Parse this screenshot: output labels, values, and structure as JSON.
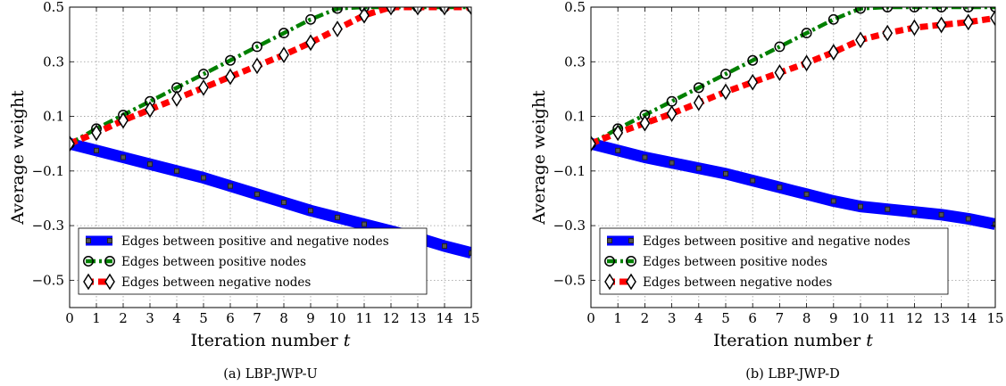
{
  "chart_data": [
    {
      "type": "line",
      "caption": "(a) LBP-JWP-U",
      "xlabel": "Iteration number",
      "xlabel_var": "t",
      "ylabel": "Average weight",
      "xlim": [
        0,
        15
      ],
      "ylim": [
        -0.6,
        0.5
      ],
      "xticks": [
        0,
        1,
        2,
        3,
        4,
        5,
        6,
        7,
        8,
        9,
        10,
        11,
        12,
        13,
        14,
        15
      ],
      "yticks": [
        0.5,
        0.3,
        0.1,
        -0.1,
        -0.3,
        -0.5
      ],
      "yticklabels": [
        "0.5",
        "0.3",
        "0.1",
        "−0.1",
        "−0.3",
        "−0.5"
      ],
      "grid": true,
      "legend_position": "lower-left",
      "x": [
        0,
        1,
        2,
        3,
        4,
        5,
        6,
        7,
        8,
        9,
        10,
        11,
        12,
        13,
        14,
        15
      ],
      "series": [
        {
          "name": "Edges between positive and negative nodes",
          "color": "#0000ff",
          "style": "solid",
          "marker": "square",
          "values": [
            0.0,
            -0.025,
            -0.05,
            -0.075,
            -0.1,
            -0.125,
            -0.155,
            -0.185,
            -0.215,
            -0.245,
            -0.27,
            -0.295,
            -0.32,
            -0.345,
            -0.375,
            -0.4
          ]
        },
        {
          "name": "Edges between positive nodes",
          "color": "#008000",
          "style": "dashdot",
          "marker": "circle",
          "values": [
            0.0,
            0.055,
            0.105,
            0.155,
            0.205,
            0.255,
            0.305,
            0.355,
            0.405,
            0.455,
            0.495,
            0.5,
            0.5,
            0.5,
            0.5,
            0.5
          ]
        },
        {
          "name": "Edges between negative nodes",
          "color": "#ff0000",
          "style": "dashed",
          "marker": "diamond",
          "values": [
            0.0,
            0.04,
            0.085,
            0.125,
            0.165,
            0.205,
            0.245,
            0.285,
            0.325,
            0.37,
            0.42,
            0.47,
            0.5,
            0.5,
            0.5,
            0.5
          ]
        }
      ]
    },
    {
      "type": "line",
      "caption": "(b) LBP-JWP-D",
      "xlabel": "Iteration number",
      "xlabel_var": "t",
      "ylabel": "Average weight",
      "xlim": [
        0,
        15
      ],
      "ylim": [
        -0.6,
        0.5
      ],
      "xticks": [
        0,
        1,
        2,
        3,
        4,
        5,
        6,
        7,
        8,
        9,
        10,
        11,
        12,
        13,
        14,
        15
      ],
      "yticks": [
        0.5,
        0.3,
        0.1,
        -0.1,
        -0.3,
        -0.5
      ],
      "yticklabels": [
        "0.5",
        "0.3",
        "0.1",
        "−0.1",
        "−0.3",
        "−0.5"
      ],
      "grid": true,
      "legend_position": "lower-left",
      "x": [
        0,
        1,
        2,
        3,
        4,
        5,
        6,
        7,
        8,
        9,
        10,
        11,
        12,
        13,
        14,
        15
      ],
      "series": [
        {
          "name": "Edges between positive and negative nodes",
          "color": "#0000ff",
          "style": "solid",
          "marker": "square",
          "values": [
            0.0,
            -0.025,
            -0.05,
            -0.07,
            -0.09,
            -0.11,
            -0.135,
            -0.16,
            -0.185,
            -0.21,
            -0.23,
            -0.24,
            -0.25,
            -0.26,
            -0.275,
            -0.295
          ]
        },
        {
          "name": "Edges between positive nodes",
          "color": "#008000",
          "style": "dashdot",
          "marker": "circle",
          "values": [
            0.0,
            0.055,
            0.105,
            0.155,
            0.205,
            0.255,
            0.305,
            0.355,
            0.405,
            0.455,
            0.495,
            0.5,
            0.5,
            0.5,
            0.5,
            0.5
          ]
        },
        {
          "name": "Edges between negative nodes",
          "color": "#ff0000",
          "style": "dashed",
          "marker": "diamond",
          "values": [
            0.0,
            0.04,
            0.075,
            0.11,
            0.15,
            0.19,
            0.225,
            0.26,
            0.295,
            0.335,
            0.38,
            0.405,
            0.425,
            0.435,
            0.445,
            0.46
          ]
        }
      ]
    }
  ]
}
